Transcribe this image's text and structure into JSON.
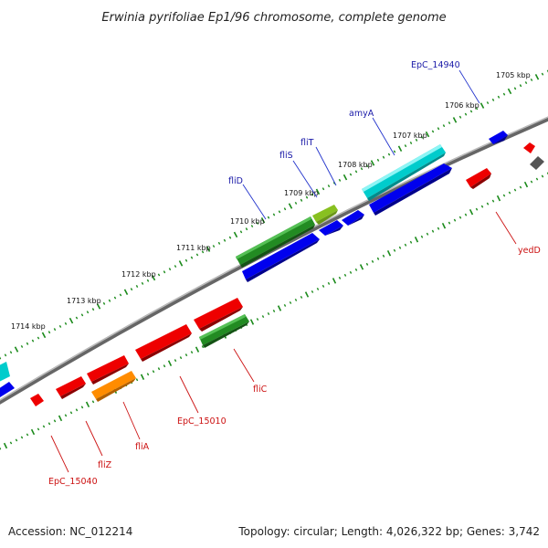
{
  "title": "Erwinia pyrifoliae Ep1/96 chromosome, complete genome",
  "footer": {
    "accession": "Accession: NC_012214",
    "topology": "Topology: circular; Length: 4,026,322 bp; Genes: 3,742"
  },
  "ticks": [
    "1705 kbp",
    "1706 kbp",
    "1707 kbp",
    "1708 kbp",
    "1709 kbp",
    "1710 kbp",
    "1711 kbp",
    "1712 kbp",
    "1713 kbp",
    "1714 kbp"
  ],
  "genes_forward": [
    {
      "label": "EpC_14940",
      "color": "#0000ee"
    },
    {
      "label": "amyA",
      "color": "#00cccc"
    },
    {
      "label": "fliT",
      "color": "#0000ee"
    },
    {
      "label": "fliS",
      "color": "#0000ee"
    },
    {
      "label": "fliD",
      "color": "#228b22"
    }
  ],
  "genes_reverse": [
    {
      "label": "yedD",
      "color": "#ee0000"
    },
    {
      "label": "fliC",
      "color": "#228b22"
    },
    {
      "label": "EpC_15010",
      "color": "#ee0000"
    },
    {
      "label": "fliA",
      "color": "#ff8c00"
    },
    {
      "label": "fliZ",
      "color": "#ee0000"
    },
    {
      "label": "EpC_15040",
      "color": "#ee0000"
    }
  ],
  "colors": {
    "forward_cds": "#0000ee",
    "reverse_cds": "#ee0000",
    "rna": "#00cccc",
    "flagellin": "#228b22",
    "sigma": "#ff8c00",
    "tick": "#1a8a1a",
    "backbone": "#777777"
  }
}
